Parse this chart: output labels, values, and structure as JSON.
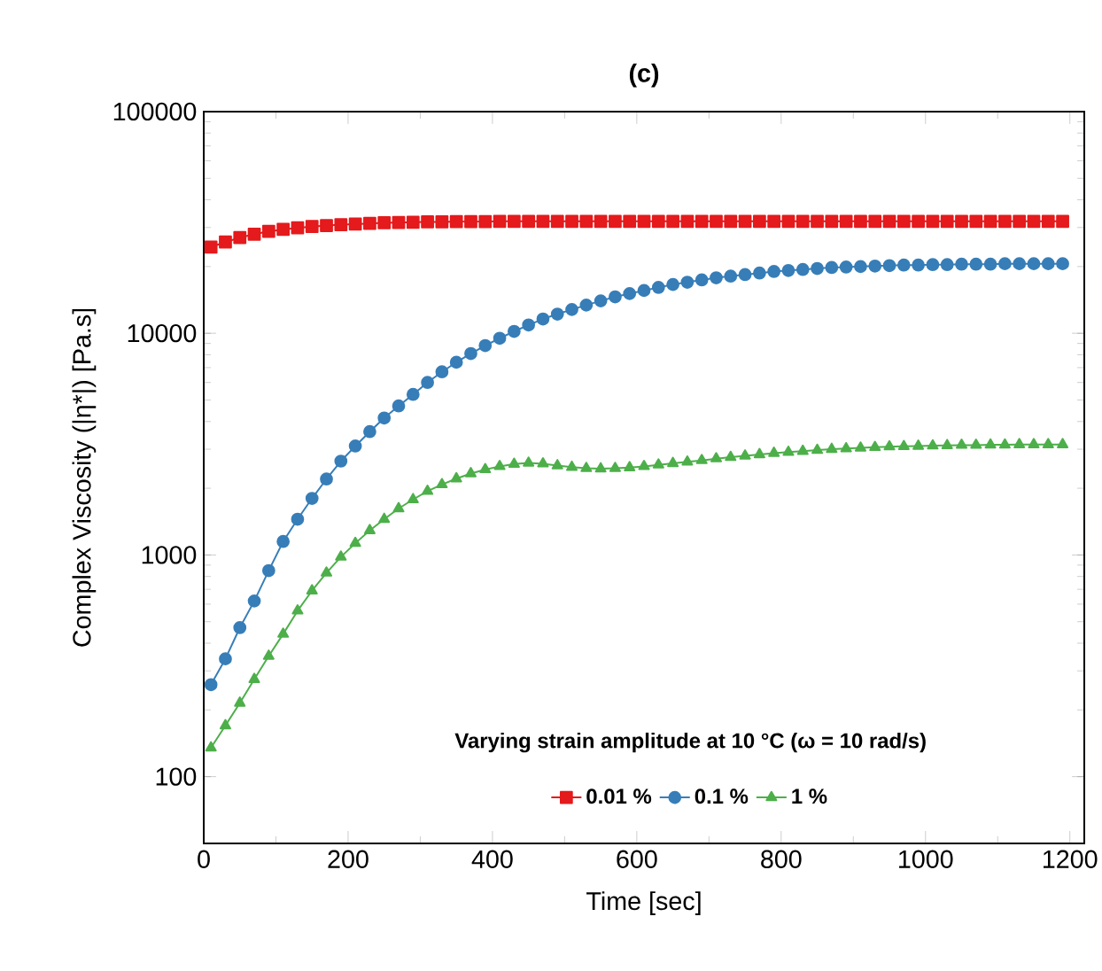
{
  "chart_data": {
    "type": "line",
    "title": "(c)",
    "xlabel": "Time [sec]",
    "ylabel": "Complex Viscosity (|η*|) [Pa.s]",
    "legend_title": "Varying strain amplitude at 10 °C (ω = 10 rad/s)",
    "legend": "bottom",
    "log": "y",
    "grid": false,
    "line_style": "solid",
    "x": [
      10,
      30,
      50,
      70,
      90,
      110,
      130,
      150,
      170,
      190,
      210,
      230,
      250,
      270,
      290,
      310,
      330,
      350,
      370,
      390,
      410,
      430,
      450,
      470,
      490,
      510,
      530,
      550,
      570,
      590,
      610,
      630,
      650,
      670,
      690,
      710,
      730,
      750,
      770,
      790,
      810,
      830,
      850,
      870,
      890,
      910,
      930,
      950,
      970,
      990,
      1010,
      1030,
      1050,
      1070,
      1090,
      1110,
      1130,
      1150,
      1170,
      1190
    ],
    "xlim": [
      0,
      1220
    ],
    "xticks": [
      0,
      200,
      400,
      600,
      800,
      1000,
      1200
    ],
    "ylim": [
      50,
      100000
    ],
    "yticks": [
      100,
      1000,
      10000,
      100000
    ],
    "series": [
      {
        "name": "0.01 %",
        "color": "#e41a1c",
        "marker": "square",
        "values": [
          24500,
          25800,
          27000,
          28000,
          28800,
          29400,
          29900,
          30300,
          30600,
          30900,
          31100,
          31300,
          31500,
          31600,
          31700,
          31800,
          31800,
          31900,
          31900,
          31900,
          32000,
          32000,
          32000,
          32000,
          32000,
          32000,
          32000,
          32000,
          32000,
          32000,
          32000,
          32000,
          32000,
          32000,
          32000,
          32000,
          32000,
          32000,
          32000,
          32000,
          32000,
          32000,
          32000,
          32000,
          32000,
          32000,
          32000,
          32000,
          32000,
          32000,
          32000,
          32000,
          32000,
          32000,
          32000,
          32000,
          32000,
          32000,
          32000,
          32000
        ]
      },
      {
        "name": "0.1 %",
        "color": "#377eb8",
        "marker": "circle",
        "values": [
          260,
          340,
          470,
          620,
          850,
          1150,
          1450,
          1800,
          2200,
          2650,
          3100,
          3600,
          4150,
          4700,
          5300,
          6000,
          6700,
          7400,
          8100,
          8800,
          9500,
          10200,
          10900,
          11600,
          12200,
          12800,
          13400,
          14000,
          14600,
          15100,
          15600,
          16100,
          16600,
          17000,
          17400,
          17800,
          18100,
          18400,
          18700,
          19000,
          19200,
          19400,
          19600,
          19800,
          19900,
          20000,
          20100,
          20200,
          20300,
          20300,
          20400,
          20400,
          20500,
          20500,
          20500,
          20600,
          20600,
          20600,
          20600,
          20600
        ]
      },
      {
        "name": "1 %",
        "color": "#4daf4a",
        "marker": "triangle",
        "values": [
          135,
          170,
          215,
          275,
          350,
          440,
          560,
          690,
          830,
          980,
          1130,
          1290,
          1450,
          1620,
          1780,
          1940,
          2080,
          2210,
          2330,
          2430,
          2510,
          2570,
          2600,
          2580,
          2530,
          2490,
          2460,
          2450,
          2460,
          2480,
          2510,
          2550,
          2590,
          2630,
          2670,
          2720,
          2760,
          2800,
          2840,
          2880,
          2910,
          2940,
          2970,
          3000,
          3020,
          3040,
          3060,
          3080,
          3090,
          3100,
          3110,
          3120,
          3130,
          3130,
          3140,
          3140,
          3150,
          3150,
          3150,
          3150
        ]
      }
    ]
  }
}
